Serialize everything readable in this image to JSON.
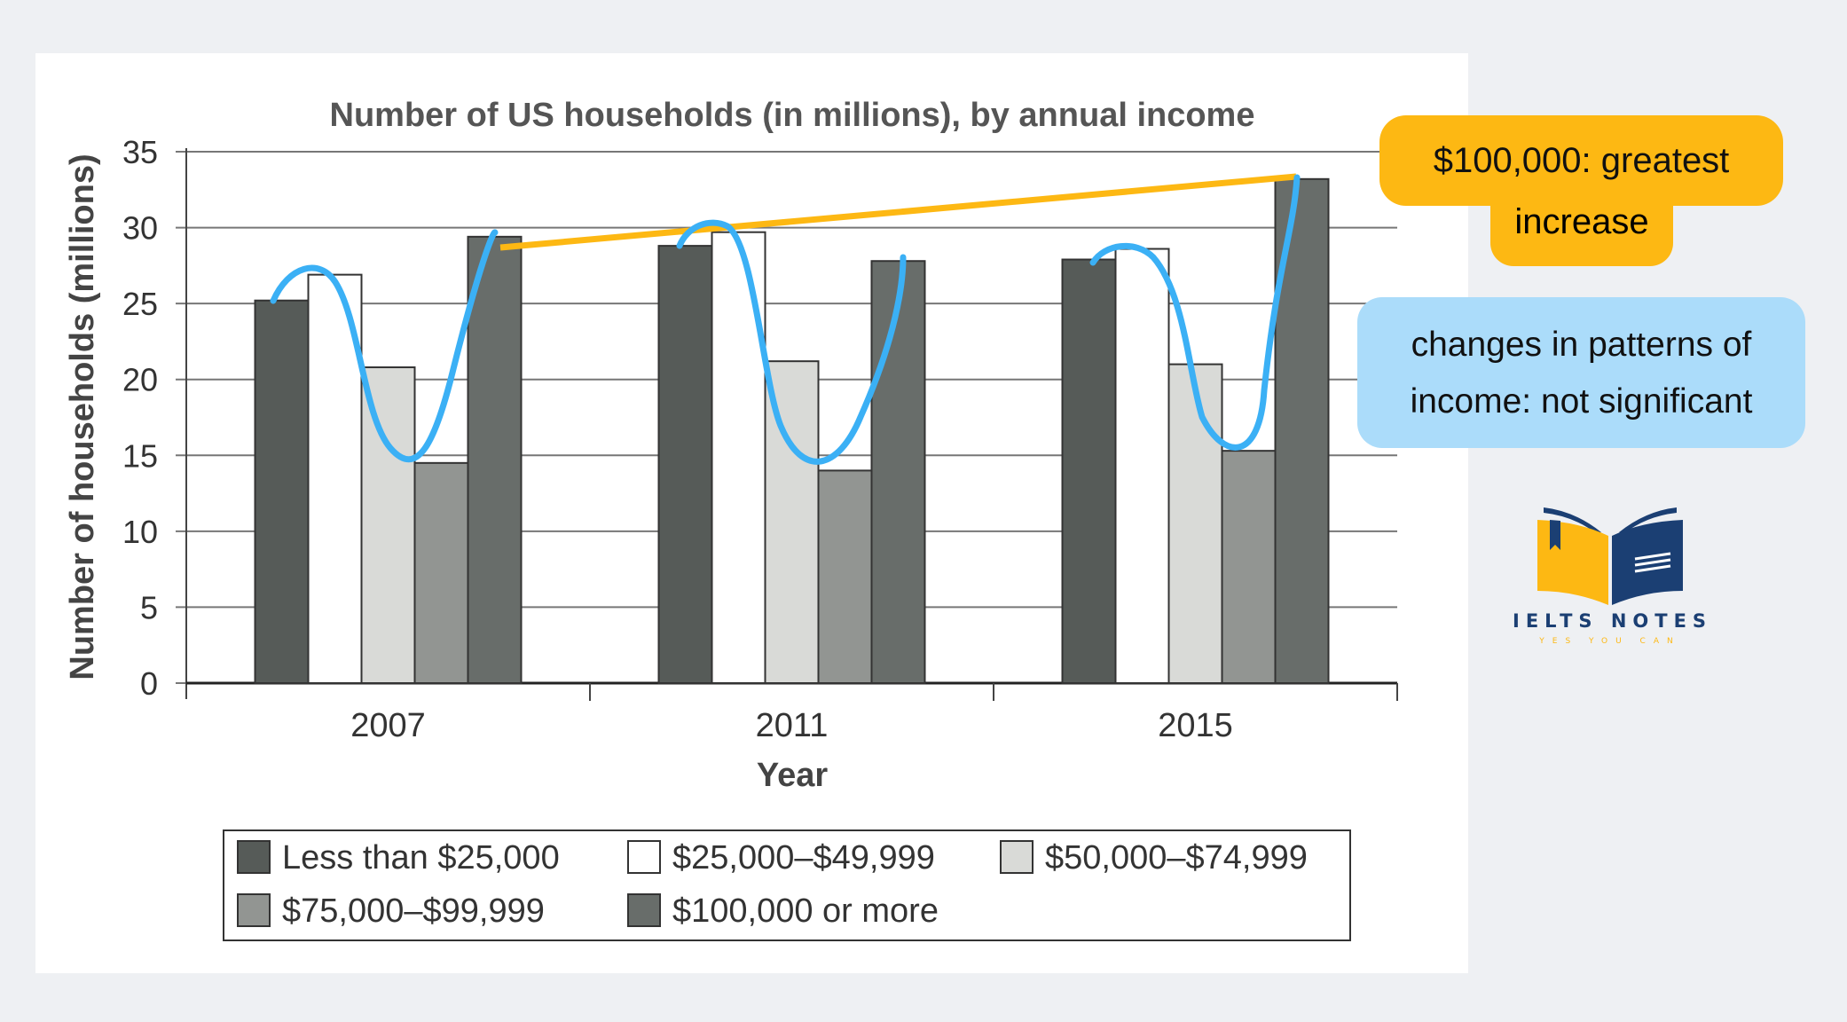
{
  "chart_data": {
    "type": "bar",
    "title": "Number of US households (in millions), by annual income",
    "xlabel": "Year",
    "ylabel": "Number of households (millions)",
    "categories": [
      "2007",
      "2011",
      "2015"
    ],
    "ylim": [
      0,
      35
    ],
    "yticks": [
      "0",
      "5",
      "10",
      "15",
      "20",
      "25",
      "30",
      "35"
    ],
    "grid": true,
    "legend_position": "bottom",
    "series": [
      {
        "name": "Less than $25,000",
        "values": [
          25.2,
          28.8,
          27.9
        ],
        "color": "#565b58"
      },
      {
        "name": "$25,000–$49,999",
        "values": [
          26.9,
          29.7,
          28.6
        ],
        "color": "#ffffff"
      },
      {
        "name": "$50,000–$74,999",
        "values": [
          20.8,
          21.2,
          21.0
        ],
        "color": "#d9dad7"
      },
      {
        "name": "$75,000–$99,999",
        "values": [
          14.5,
          14.0,
          15.3
        ],
        "color": "#929592"
      },
      {
        "name": "$100,000 or more",
        "values": [
          29.4,
          27.8,
          33.2
        ],
        "color": "#686d6a"
      }
    ]
  },
  "annotations": {
    "orange_note_line1": "$100,000: greatest",
    "orange_note_line2": "increase",
    "blue_note_line1": "changes in patterns of",
    "blue_note_line2": "income: not significant",
    "orange_color": "#fdb813",
    "blue_color": "#3bb0f5"
  },
  "logo": {
    "title": "IELTS NOTES",
    "subtitle": "YES YOU CAN"
  }
}
